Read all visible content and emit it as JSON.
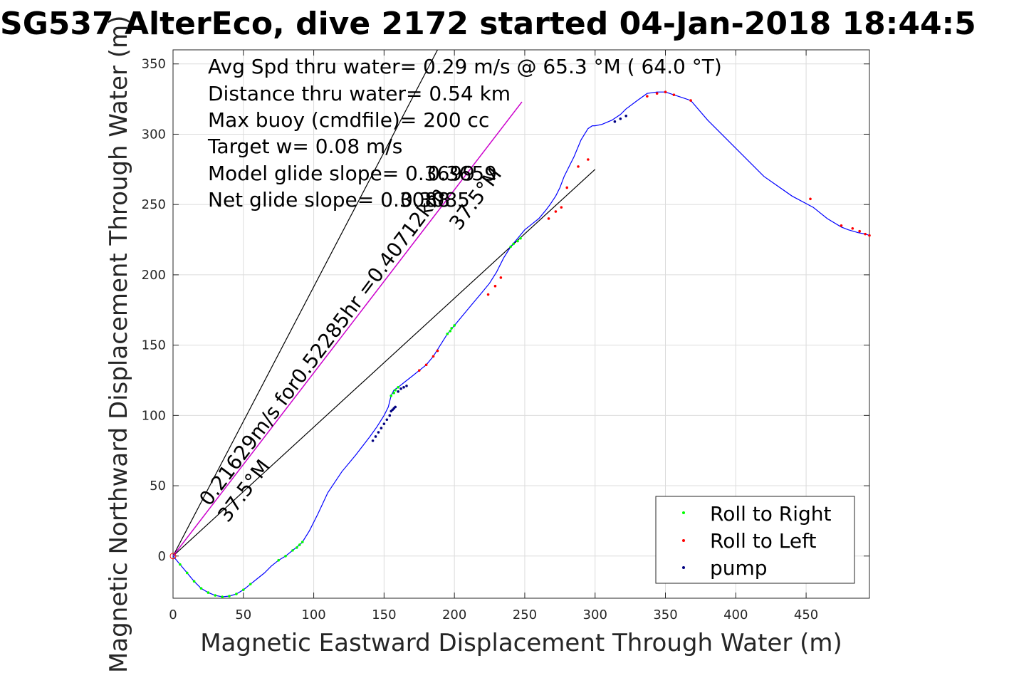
{
  "title": "SG537 AlterEco, dive 2172 started 04-Jan-2018 18:44:5",
  "colors": {
    "track": "#0000ff",
    "roll_right": "#00ff00",
    "roll_left": "#ff0000",
    "pump": "#000080",
    "heading_line": "#000000",
    "cog_line": "#cc00cc",
    "grid": "#dcdcdc"
  },
  "chart_data": {
    "type": "line",
    "xlabel": "Magnetic Eastward Displacement Through Water (m)",
    "ylabel": "Magnetic Northward Displacement Through Water (m)",
    "xlim": [
      0,
      495
    ],
    "ylim": [
      -30,
      360
    ],
    "xticks": [
      "0",
      "50",
      "100",
      "150",
      "200",
      "250",
      "300",
      "350",
      "400",
      "450"
    ],
    "yticks": [
      "0",
      "50",
      "100",
      "150",
      "200",
      "250",
      "300",
      "350"
    ],
    "grid": true,
    "legend_position": "bottom-right",
    "legend": [
      "Roll to Right",
      "Roll to Left",
      "pump"
    ],
    "track": {
      "x": [
        0,
        5,
        10,
        15,
        20,
        25,
        30,
        35,
        40,
        45,
        50,
        55,
        60,
        65,
        70,
        75,
        80,
        85,
        90,
        92,
        97,
        103,
        110,
        120,
        130,
        140,
        145,
        150,
        153,
        155,
        157,
        160,
        165,
        170,
        175,
        180,
        185,
        190,
        195,
        200,
        210,
        220,
        225,
        230,
        235,
        240,
        245,
        250,
        255,
        260,
        265,
        268,
        272,
        275,
        278,
        282,
        285,
        290,
        295,
        298,
        300,
        305,
        312,
        318,
        322,
        330,
        337,
        344,
        350,
        356,
        362,
        368,
        380,
        400,
        420,
        440,
        455,
        465,
        475,
        480,
        487,
        492,
        495
      ],
      "y": [
        0,
        -6,
        -12,
        -18,
        -23,
        -26,
        -28,
        -29,
        -28.5,
        -27,
        -24,
        -20,
        -16,
        -12,
        -7,
        -3,
        0,
        4,
        8,
        10,
        18,
        30,
        45,
        60,
        72,
        85,
        92,
        100,
        106,
        114,
        118,
        120,
        124,
        128,
        132,
        136,
        142,
        150,
        158,
        164,
        176,
        188,
        194,
        202,
        212,
        220,
        226,
        232,
        236,
        240,
        246,
        250,
        256,
        262,
        270,
        278,
        284,
        296,
        304,
        306,
        306,
        307,
        310,
        314,
        318,
        324,
        329,
        330,
        330,
        328,
        326,
        324,
        310,
        290,
        270,
        256,
        248,
        240,
        234,
        232,
        230,
        229,
        228
      ]
    },
    "roll_right_points": {
      "x": [
        5,
        10,
        15,
        20,
        25,
        30,
        35,
        40,
        45,
        50,
        55,
        75,
        80,
        85,
        88,
        90,
        92,
        155,
        157,
        158,
        160,
        195,
        197,
        198,
        200,
        240,
        242,
        245,
        247
      ],
      "y": [
        -6,
        -12,
        -18,
        -23,
        -26,
        -28,
        -29,
        -28.5,
        -27,
        -24,
        -20,
        -3,
        0,
        4,
        6,
        8,
        10,
        114,
        116,
        118,
        120,
        158,
        160,
        162,
        164,
        220,
        222,
        224,
        226
      ]
    },
    "roll_left_points": {
      "x": [
        175,
        180,
        185,
        188,
        224,
        229,
        233,
        267,
        272,
        276,
        280,
        288,
        295,
        337,
        344,
        350,
        356,
        368,
        453,
        475,
        483,
        488,
        492,
        495
      ],
      "y": [
        132,
        136,
        142,
        146,
        186,
        192,
        198,
        240,
        245,
        248,
        262,
        277,
        282,
        327,
        329,
        330,
        328,
        324,
        254,
        235,
        233,
        231,
        229,
        228
      ],
      "open_circle": {
        "x": 0,
        "y": 0
      }
    },
    "pump_points": {
      "x": [
        142,
        144,
        146,
        148,
        150,
        152,
        154,
        155,
        156,
        157,
        158,
        160,
        162,
        164,
        166,
        314,
        318,
        322
      ],
      "y": [
        82,
        85,
        88,
        91,
        94,
        97,
        100,
        103,
        104,
        105,
        106,
        117,
        119,
        120,
        121,
        309,
        311,
        313
      ]
    },
    "heading_lines": [
      {
        "x": [
          0,
          188
        ],
        "y": [
          0,
          360
        ]
      },
      {
        "x": [
          0,
          300
        ],
        "y": [
          0,
          275
        ]
      }
    ],
    "cog_line": {
      "x": [
        0,
        248
      ],
      "y": [
        0,
        323
      ]
    },
    "annotations": {
      "stats": [
        "Avg Spd thru water=  0.29 m/s @  65.3 °M ( 64.0 °T)",
        "Distance thru water=  0.54 km",
        "Max buoy (cmdfile)= 200 cc",
        "Target w= 0.08 m/s",
        "Model glide slope= 0.3699",
        "Net glide slope= 0.3088"
      ],
      "along_line": "0.21629m/s for0.52285hr =0.40712km",
      "heading_1": "37.5°M",
      "heading_2": "37.5°M",
      "glide_overlay_1": "0.3659",
      "glide_overlay_2": "0.3085"
    }
  }
}
